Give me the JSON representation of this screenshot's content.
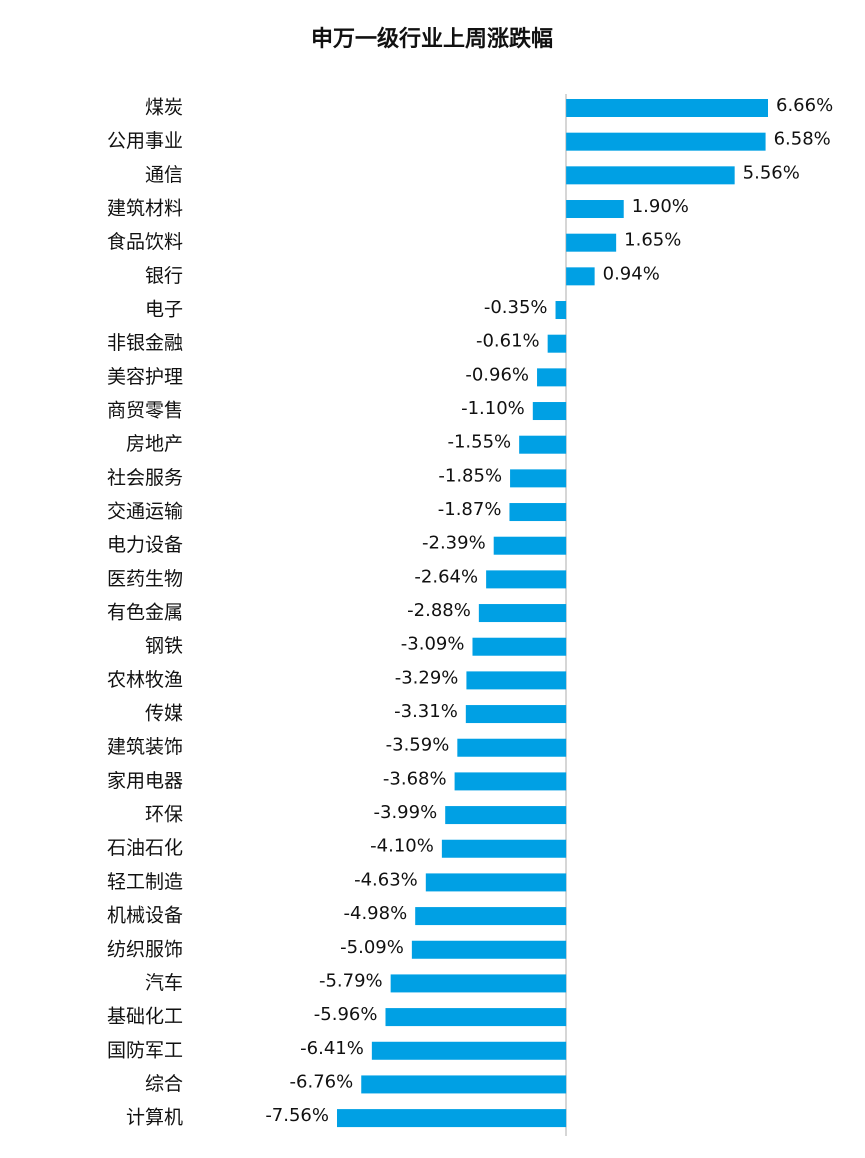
{
  "chart_data": {
    "type": "bar",
    "orientation": "horizontal",
    "title": "申万一级行业上周涨跌幅",
    "color": "#00a0e4",
    "categories": [
      "煤炭",
      "公用事业",
      "通信",
      "建筑材料",
      "食品饮料",
      "银行",
      "电子",
      "非银金融",
      "美容护理",
      "商贸零售",
      "房地产",
      "社会服务",
      "交通运输",
      "电力设备",
      "医药生物",
      "有色金属",
      "钢铁",
      "农林牧渔",
      "传媒",
      "建筑装饰",
      "家用电器",
      "环保",
      "石油石化",
      "轻工制造",
      "机械设备",
      "纺织服饰",
      "汽车",
      "基础化工",
      "国防军工",
      "综合",
      "计算机"
    ],
    "values": [
      6.66,
      6.58,
      5.56,
      1.9,
      1.65,
      0.94,
      -0.35,
      -0.61,
      -0.96,
      -1.1,
      -1.55,
      -1.85,
      -1.87,
      -2.39,
      -2.64,
      -2.88,
      -3.09,
      -3.29,
      -3.31,
      -3.59,
      -3.68,
      -3.99,
      -4.1,
      -4.63,
      -4.98,
      -5.09,
      -5.79,
      -5.96,
      -6.41,
      -6.76,
      -7.56
    ],
    "value_labels": [
      "6.66%",
      "6.58%",
      "5.56%",
      "1.90%",
      "1.65%",
      "0.94%",
      "-0.35%",
      "-0.61%",
      "-0.96%",
      "-1.10%",
      "-1.55%",
      "-1.85%",
      "-1.87%",
      "-2.39%",
      "-2.64%",
      "-2.88%",
      "-3.09%",
      "-3.29%",
      "-3.31%",
      "-3.59%",
      "-3.68%",
      "-3.99%",
      "-4.10%",
      "-4.63%",
      "-4.98%",
      "-5.09%",
      "-5.79%",
      "-5.96%",
      "-6.41%",
      "-6.76%",
      "-7.56%"
    ]
  }
}
